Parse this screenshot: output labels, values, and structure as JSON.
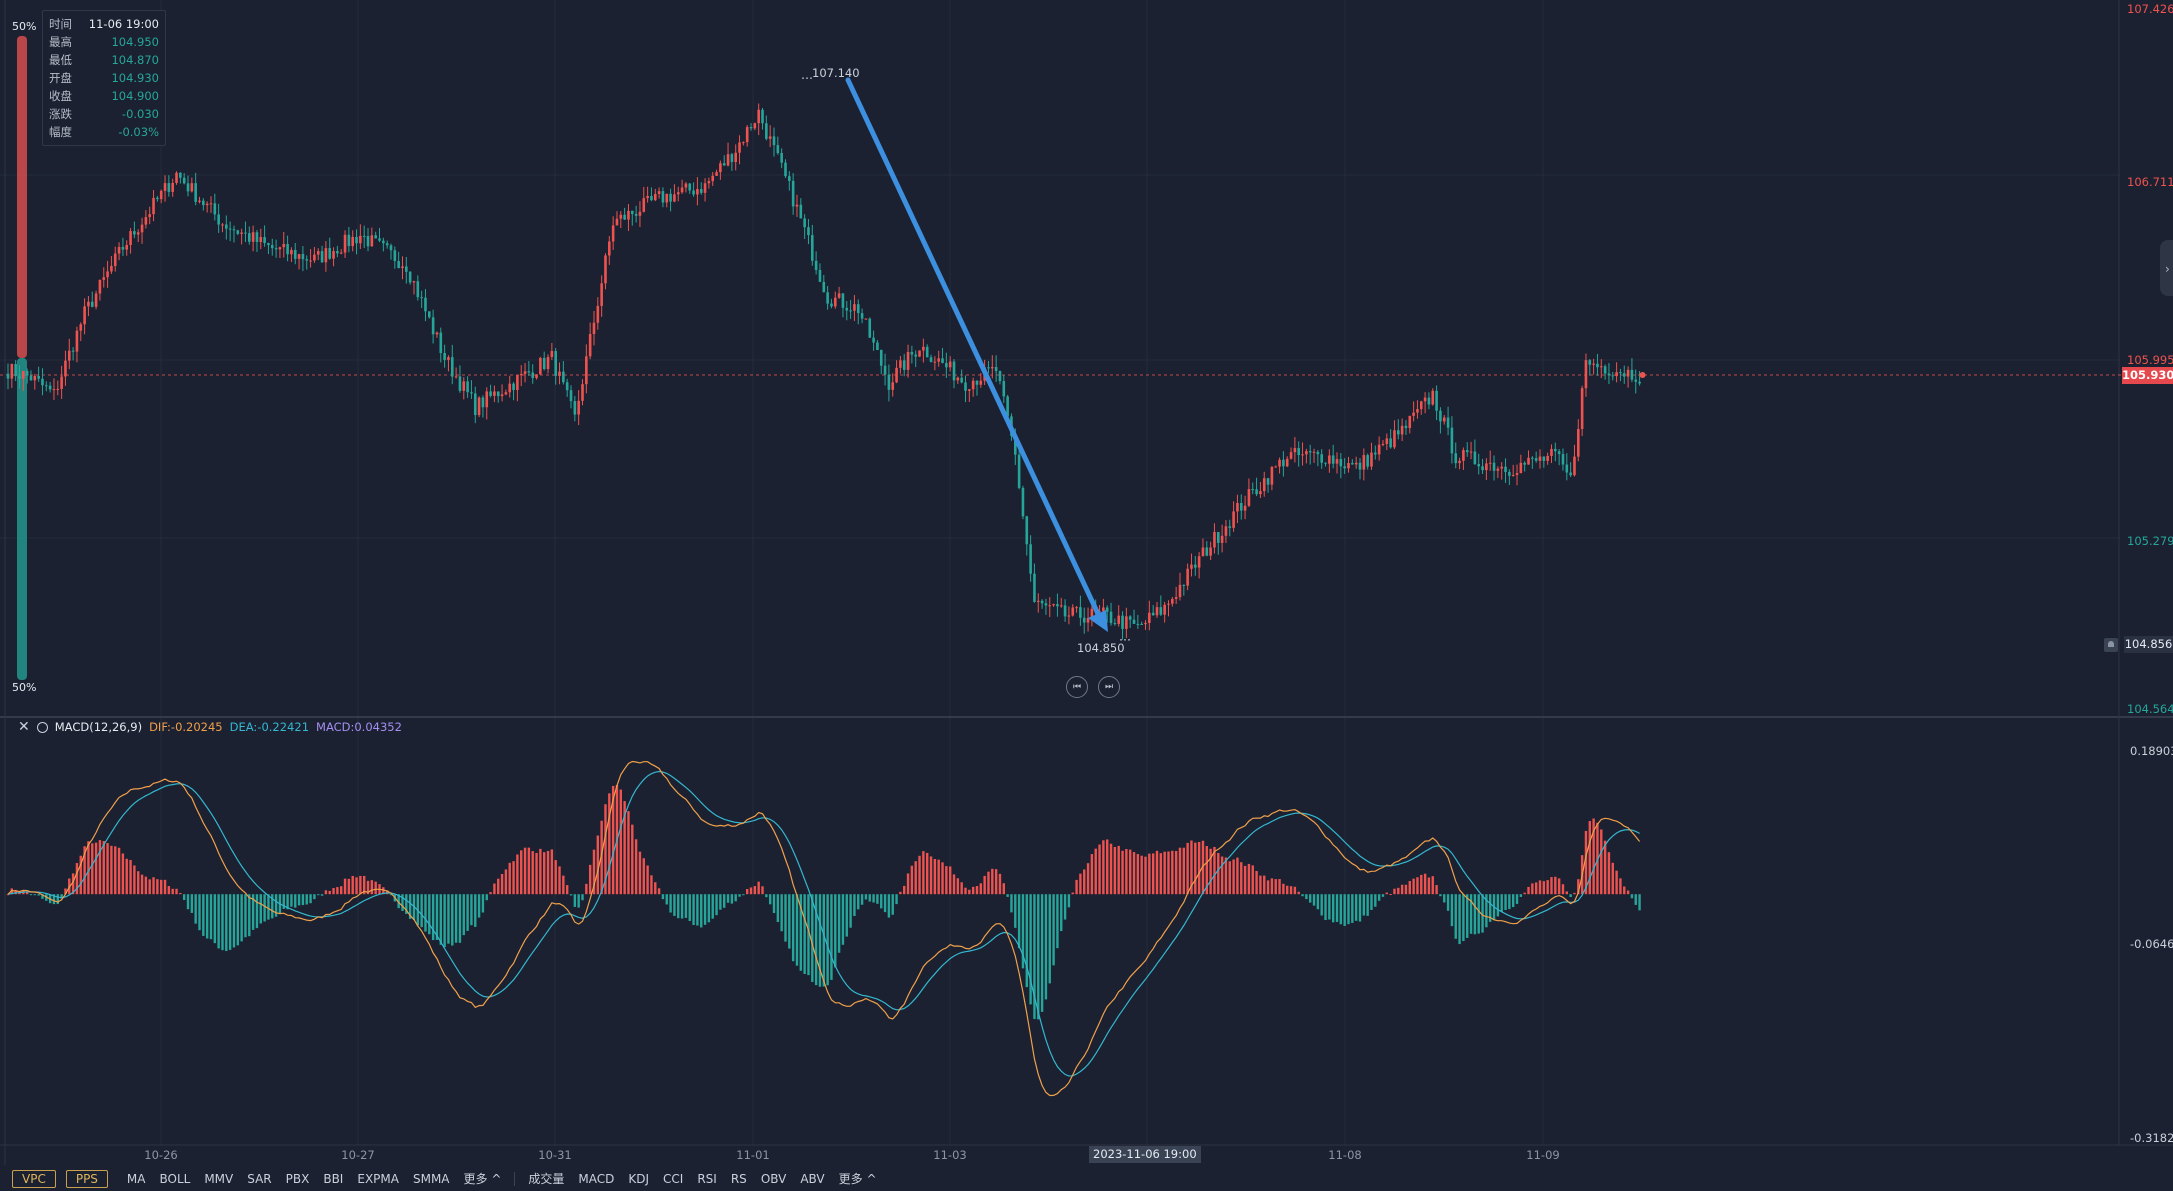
{
  "info_panel": {
    "rows": [
      {
        "label": "时间",
        "value": "11-06 19:00"
      },
      {
        "label": "最高",
        "value": "104.950"
      },
      {
        "label": "最低",
        "value": "104.870"
      },
      {
        "label": "开盘",
        "value": "104.930"
      },
      {
        "label": "收盘",
        "value": "104.900"
      },
      {
        "label": "涨跌",
        "value": "-0.030"
      },
      {
        "label": "幅度",
        "value": "-0.03%"
      }
    ]
  },
  "buy_sell_ratio": {
    "top_label": "50%",
    "bottom_label": "50%",
    "buy_fraction": 0.5
  },
  "price_axis": {
    "labels": [
      "107.426",
      "106.711",
      "105.995",
      "105.279",
      "104.564"
    ],
    "current_price": "105.930",
    "crosshair_price": "104.856"
  },
  "annotations": {
    "high_label": "107.140",
    "low_label": "104.850"
  },
  "macd_panel": {
    "name": "MACD(12,26,9)",
    "dif": "DIF:-0.20245",
    "dea": "DEA:-0.22421",
    "macd": "MACD:0.04352",
    "axis_labels": [
      "0.18903",
      "-0.06462",
      "-0.31826"
    ]
  },
  "time_axis": {
    "labels": [
      "10-26",
      "10-27",
      "10-31",
      "11-01",
      "11-03",
      "11-08",
      "11-09"
    ],
    "crosshair_label": "2023-11-06 19:00"
  },
  "toolbar": {
    "main_toggles": [
      "VPC",
      "PPS"
    ],
    "main_indicators": [
      "MA",
      "BOLL",
      "MMV",
      "SAR",
      "PBX",
      "BBI",
      "EXPMA",
      "SMMA",
      "更多 ^"
    ],
    "sub_indicators": [
      "成交量",
      "MACD",
      "KDJ",
      "CCI",
      "RSI",
      "RS",
      "OBV",
      "ABV",
      "更多 ^"
    ]
  },
  "colors": {
    "up": "#ef5350",
    "down": "#26a69a",
    "dif": "#f0a04b",
    "dea": "#34b7d0",
    "arrow": "#3d8fe0",
    "background": "#1b2130"
  },
  "chart_data": {
    "type": "candlestick",
    "price_range": [
      104.564,
      107.426
    ],
    "macd_range": [
      -0.31826,
      0.18903
    ],
    "key_prices": {
      "high": 107.14,
      "low": 104.85,
      "current": 105.93
    },
    "price_path_anchors": [
      {
        "t": 0,
        "p": 105.95
      },
      {
        "t": 6,
        "p": 105.92
      },
      {
        "t": 12,
        "p": 105.85
      },
      {
        "t": 20,
        "p": 106.18
      },
      {
        "t": 30,
        "p": 106.45
      },
      {
        "t": 44,
        "p": 106.75
      },
      {
        "t": 56,
        "p": 106.55
      },
      {
        "t": 68,
        "p": 106.45
      },
      {
        "t": 80,
        "p": 106.4
      },
      {
        "t": 92,
        "p": 106.5
      },
      {
        "t": 104,
        "p": 106.38
      },
      {
        "t": 114,
        "p": 106.0
      },
      {
        "t": 122,
        "p": 105.8
      },
      {
        "t": 130,
        "p": 105.88
      },
      {
        "t": 142,
        "p": 106.0
      },
      {
        "t": 148,
        "p": 105.75
      },
      {
        "t": 158,
        "p": 106.55
      },
      {
        "t": 170,
        "p": 106.65
      },
      {
        "t": 182,
        "p": 106.7
      },
      {
        "t": 190,
        "p": 106.85
      },
      {
        "t": 196,
        "p": 107.0
      },
      {
        "t": 205,
        "p": 106.65
      },
      {
        "t": 214,
        "p": 106.25
      },
      {
        "t": 222,
        "p": 106.2
      },
      {
        "t": 230,
        "p": 105.9
      },
      {
        "t": 238,
        "p": 106.05
      },
      {
        "t": 250,
        "p": 105.9
      },
      {
        "t": 258,
        "p": 105.95
      },
      {
        "t": 263,
        "p": 105.6
      },
      {
        "t": 268,
        "p": 105.0
      },
      {
        "t": 276,
        "p": 104.95
      },
      {
        "t": 286,
        "p": 104.95
      },
      {
        "t": 295,
        "p": 104.9
      },
      {
        "t": 302,
        "p": 104.98
      },
      {
        "t": 312,
        "p": 105.2
      },
      {
        "t": 322,
        "p": 105.4
      },
      {
        "t": 334,
        "p": 105.6
      },
      {
        "t": 344,
        "p": 105.6
      },
      {
        "t": 352,
        "p": 105.55
      },
      {
        "t": 364,
        "p": 105.7
      },
      {
        "t": 372,
        "p": 105.85
      },
      {
        "t": 378,
        "p": 105.6
      },
      {
        "t": 392,
        "p": 105.55
      },
      {
        "t": 404,
        "p": 105.6
      },
      {
        "t": 408,
        "p": 105.5
      },
      {
        "t": 412,
        "p": 105.98
      },
      {
        "t": 426,
        "p": 105.93
      }
    ]
  }
}
